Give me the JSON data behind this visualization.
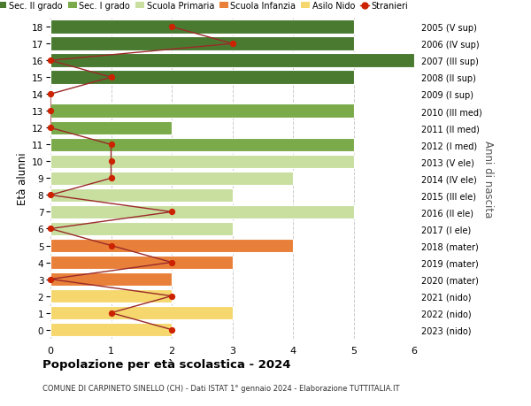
{
  "ages": [
    0,
    1,
    2,
    3,
    4,
    5,
    6,
    7,
    8,
    9,
    10,
    11,
    12,
    13,
    14,
    15,
    16,
    17,
    18
  ],
  "right_labels": [
    "2023 (nido)",
    "2022 (nido)",
    "2021 (nido)",
    "2020 (mater)",
    "2019 (mater)",
    "2018 (mater)",
    "2017 (I ele)",
    "2016 (II ele)",
    "2015 (III ele)",
    "2014 (IV ele)",
    "2013 (V ele)",
    "2012 (I med)",
    "2011 (II med)",
    "2010 (III med)",
    "2009 (I sup)",
    "2008 (II sup)",
    "2007 (III sup)",
    "2006 (IV sup)",
    "2005 (V sup)"
  ],
  "bar_values": [
    2,
    3,
    2,
    2,
    3,
    4,
    3,
    5,
    3,
    4,
    5,
    5,
    2,
    5,
    0,
    5,
    6,
    5,
    5
  ],
  "bar_colors": [
    "#f5d76e",
    "#f5d76e",
    "#f5d76e",
    "#e8803a",
    "#e8803a",
    "#e8803a",
    "#c8dfa0",
    "#c8dfa0",
    "#c8dfa0",
    "#c8dfa0",
    "#c8dfa0",
    "#7aaa4a",
    "#7aaa4a",
    "#7aaa4a",
    "#4a7a30",
    "#4a7a30",
    "#4a7a30",
    "#4a7a30",
    "#4a7a30"
  ],
  "stranieri_values": [
    2,
    1,
    2,
    0,
    2,
    1,
    0,
    2,
    0,
    1,
    1,
    1,
    0,
    0,
    0,
    1,
    0,
    3,
    2
  ],
  "legend_labels": [
    "Sec. II grado",
    "Sec. I grado",
    "Scuola Primaria",
    "Scuola Infanzia",
    "Asilo Nido",
    "Stranieri"
  ],
  "legend_colors": [
    "#4a7a30",
    "#7aaa4a",
    "#c8dfa0",
    "#e8803a",
    "#f5d76e",
    "#cc2200"
  ],
  "title_bold": "Popolazione per età scolastica - 2024",
  "subtitle": "COMUNE DI CARPINETO SINELLO (CH) - Dati ISTAT 1° gennaio 2024 - Elaborazione TUTTITALIA.IT",
  "ylabel_left": "Età alunni",
  "ylabel_right": "Anni di nascita",
  "xlim": [
    0,
    6
  ],
  "background_color": "#ffffff",
  "grid_color": "#cccccc",
  "bar_height": 0.82
}
